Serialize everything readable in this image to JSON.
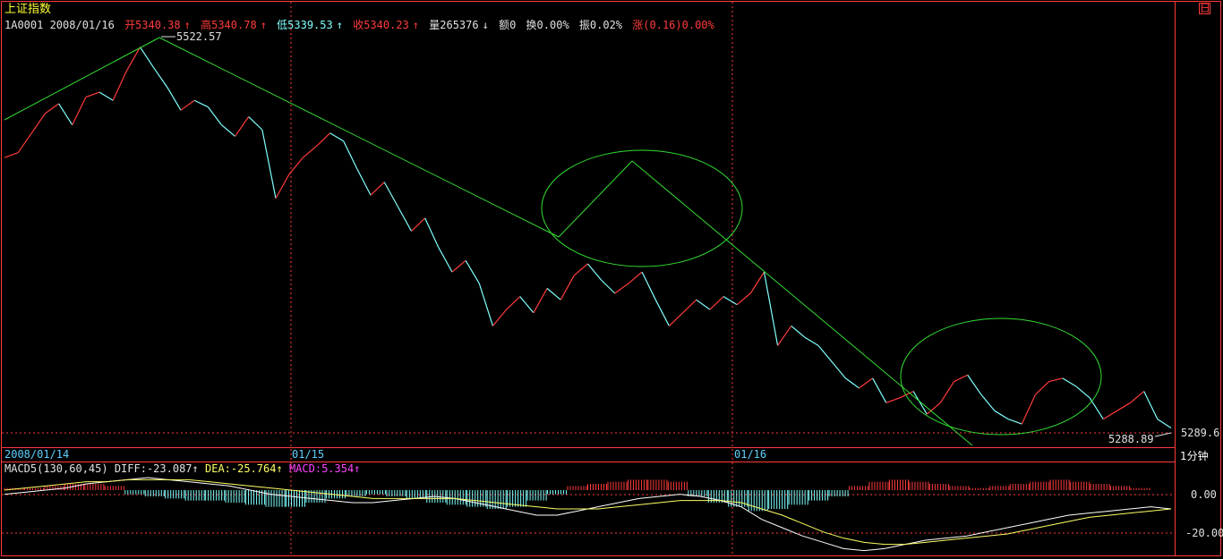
{
  "title": "上证指数",
  "info": {
    "code_date": "1A0001 2008/01/16",
    "open": "开5340.38",
    "high": "高5340.78",
    "low": "低5339.53",
    "close": "收5340.23",
    "volume": "量265376",
    "amount": "额0",
    "turnover": "换0.00%",
    "amplitude": "振0.02%",
    "change": "涨(0.16)0.00%"
  },
  "macd": {
    "name": "MACD5(130,60,45)",
    "diff": "DIFF:-23.087",
    "dea": "DEA:-25.764",
    "macd": "MACD:5.354"
  },
  "period_label": "1分钟",
  "corner_label": "日",
  "price_labels": {
    "max": "5522.57",
    "min": "5288.89",
    "last": "5289.6"
  },
  "macd_axis": [
    "0.00",
    "-20.00"
  ],
  "chart_data": {
    "type": "line",
    "dates": [
      "2008/01/14",
      "01/15",
      "01/16"
    ],
    "price_series": [
      5455,
      5458,
      5470,
      5482,
      5488,
      5475,
      5492,
      5495,
      5490,
      5508,
      5522.57,
      5510,
      5498,
      5484,
      5490,
      5486,
      5475,
      5468,
      5480,
      5472,
      5430,
      5445,
      5455,
      5462,
      5470,
      5465,
      5448,
      5432,
      5440,
      5425,
      5410,
      5418,
      5400,
      5385,
      5392,
      5378,
      5352,
      5362,
      5370,
      5360,
      5375,
      5368,
      5383,
      5390,
      5380,
      5372,
      5378,
      5385,
      5368,
      5352,
      5360,
      5368,
      5362,
      5370,
      5365,
      5372,
      5385,
      5340,
      5352,
      5345,
      5340,
      5330,
      5320,
      5314,
      5320,
      5305,
      5308,
      5312,
      5298,
      5305,
      5318,
      5322,
      5310,
      5300,
      5295,
      5292,
      5310,
      5318,
      5320,
      5315,
      5308,
      5295,
      5300,
      5305,
      5312,
      5295,
      5289.6
    ],
    "macd_diff": [
      -2,
      -1,
      0,
      1,
      3,
      4,
      5,
      6,
      5,
      4,
      3,
      2,
      0,
      -2,
      -3,
      -4,
      -5,
      -6,
      -6,
      -5,
      -4,
      -3,
      -4,
      -6,
      -8,
      -10,
      -12,
      -12,
      -10,
      -8,
      -6,
      -4,
      -3,
      -2,
      -3,
      -5,
      -8,
      -14,
      -18,
      -22,
      -25,
      -28,
      -29,
      -28,
      -26,
      -24,
      -23,
      -22,
      -20,
      -18,
      -16,
      -14,
      -12,
      -11,
      -10,
      -9,
      -8,
      -9
    ],
    "macd_dea": [
      0,
      1,
      2,
      3,
      4,
      4,
      5,
      5,
      5,
      5,
      4,
      3,
      2,
      1,
      0,
      -1,
      -2,
      -3,
      -4,
      -4,
      -4,
      -4,
      -4,
      -5,
      -6,
      -7,
      -8,
      -9,
      -9,
      -9,
      -8,
      -7,
      -6,
      -5,
      -5,
      -5,
      -6,
      -9,
      -12,
      -16,
      -20,
      -23,
      -25,
      -26,
      -26,
      -25,
      -24,
      -23,
      -22,
      -21,
      -19,
      -17,
      -15,
      -13,
      -12,
      -11,
      -10,
      -9
    ],
    "macd_bars": [
      1,
      1,
      2,
      3,
      3,
      2,
      -2,
      -3,
      -4,
      -5,
      -5,
      -6,
      -7,
      -8,
      -8,
      -6,
      -4,
      -3,
      -2,
      -3,
      -4,
      -6,
      -7,
      -8,
      -9,
      -8,
      -5,
      -2,
      2,
      3,
      4,
      5,
      5,
      4,
      -3,
      -6,
      -8,
      -10,
      -9,
      -7,
      -5,
      -3,
      2,
      4,
      5,
      4,
      3,
      2,
      1,
      2,
      3,
      4,
      5,
      4,
      3,
      2,
      1,
      0
    ],
    "price_ylim": [
      5280,
      5535
    ],
    "macd_ylim": [
      -30,
      12
    ]
  }
}
